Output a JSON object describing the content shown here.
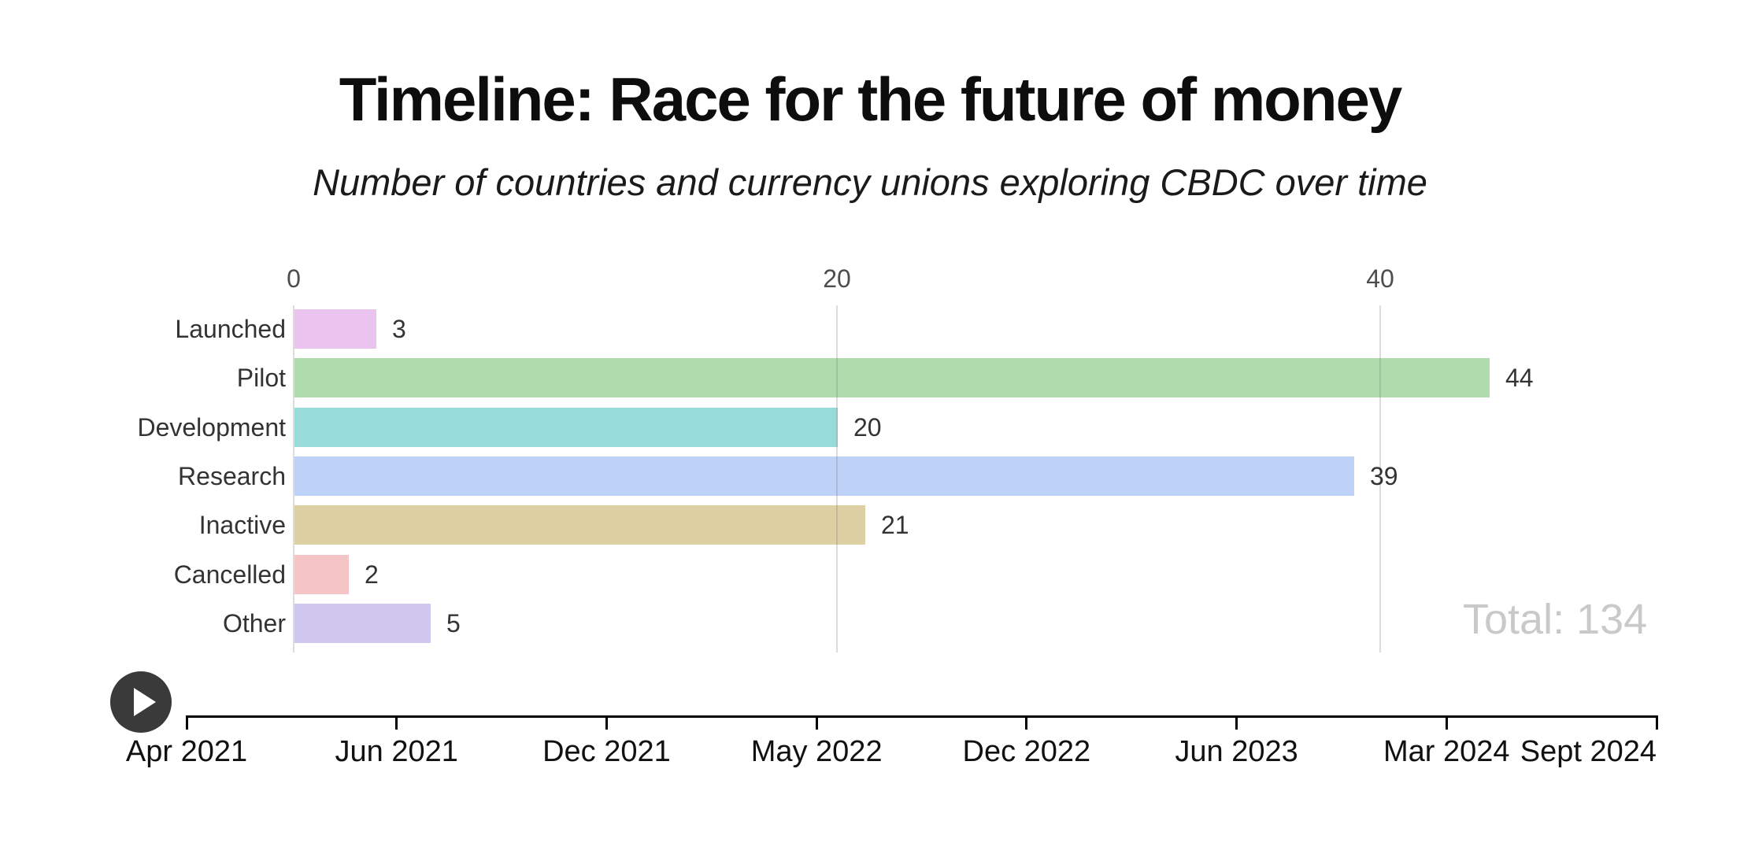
{
  "header": {
    "title": "Timeline: Race for the future of money",
    "subtitle": "Number of countries and currency unions exploring CBDC over time"
  },
  "total_label": "Total: 134",
  "controls": {
    "play_button": "play-icon"
  },
  "chart_data": {
    "type": "bar",
    "orientation": "horizontal",
    "title": "Timeline: Race for the future of money",
    "subtitle": "Number of countries and currency unions exploring CBDC over time",
    "categories": [
      "Launched",
      "Pilot",
      "Development",
      "Research",
      "Inactive",
      "Cancelled",
      "Other"
    ],
    "values": [
      3,
      44,
      20,
      39,
      21,
      2,
      5
    ],
    "bar_colors": [
      "#eac4ee",
      "#b0dbad",
      "#98dcda",
      "#bdd2f6",
      "#ddd0a2",
      "#f5c4c7",
      "#d0c7ef"
    ],
    "total": 134,
    "value_axis": {
      "ticks": [
        0,
        20,
        40
      ],
      "range": [
        0,
        53
      ],
      "grid": true,
      "position": "top"
    },
    "time_axis": {
      "labels": [
        "Apr 2021",
        "Jun 2021",
        "Dec 2021",
        "May 2022",
        "Dec 2022",
        "Jun 2023",
        "Mar 2024",
        "Sept 2024"
      ],
      "position": "bottom"
    },
    "legend": "none"
  }
}
